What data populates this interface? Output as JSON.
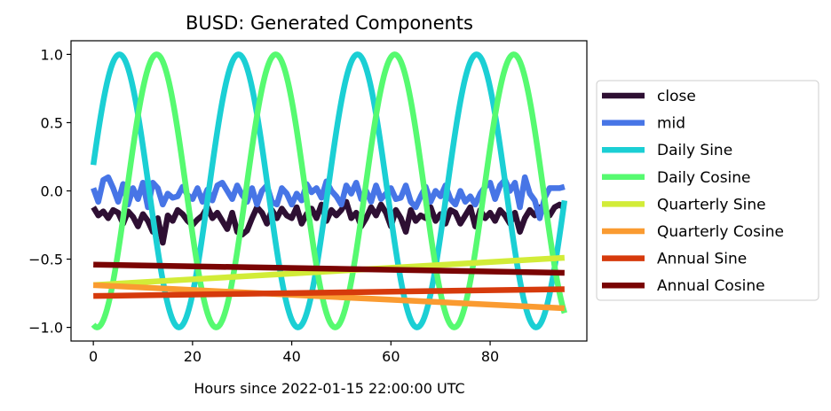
{
  "chart_data": {
    "type": "line",
    "title": "BUSD: Generated Components",
    "xlabel": "Hours since 2022-01-15 22:00:00 UTC",
    "ylabel": "",
    "xlim": [
      -4.5,
      99.5
    ],
    "ylim": [
      -1.1,
      1.1
    ],
    "xticks": [
      0,
      20,
      40,
      60,
      80
    ],
    "yticks": [
      1.0,
      0.5,
      0.0,
      -0.5,
      -1.0
    ],
    "ytick_labels": [
      "1.0",
      "0.5",
      "0.0",
      "−0.5",
      "−1.0"
    ],
    "grid": false,
    "legend_position": "center right, outside plot",
    "x_start": 0,
    "x_end": 95,
    "series": [
      {
        "name": "close",
        "color": "#2e0f33",
        "values": [
          -0.12,
          -0.18,
          -0.15,
          -0.2,
          -0.14,
          -0.16,
          -0.24,
          -0.15,
          -0.19,
          -0.26,
          -0.17,
          -0.22,
          -0.3,
          -0.2,
          -0.38,
          -0.18,
          -0.22,
          -0.14,
          -0.17,
          -0.22,
          -0.25,
          -0.21,
          -0.18,
          -0.12,
          -0.2,
          -0.16,
          -0.22,
          -0.28,
          -0.16,
          -0.3,
          -0.32,
          -0.29,
          -0.2,
          -0.12,
          -0.16,
          -0.24,
          -0.14,
          -0.2,
          -0.13,
          -0.18,
          -0.2,
          -0.12,
          -0.24,
          -0.17,
          -0.13,
          -0.2,
          -0.1,
          -0.22,
          -0.14,
          -0.18,
          -0.14,
          -0.08,
          -0.2,
          -0.16,
          -0.26,
          -0.2,
          -0.12,
          -0.18,
          -0.1,
          -0.16,
          -0.26,
          -0.14,
          -0.2,
          -0.3,
          -0.14,
          -0.22,
          -0.18,
          -0.2,
          -0.12,
          -0.22,
          -0.17,
          -0.24,
          -0.14,
          -0.16,
          -0.24,
          -0.18,
          -0.12,
          -0.26,
          -0.14,
          -0.2,
          -0.16,
          -0.22,
          -0.14,
          -0.18,
          -0.24,
          -0.16,
          -0.3,
          -0.2,
          -0.14,
          -0.18,
          -0.12,
          -0.14,
          -0.18,
          -0.12,
          -0.1,
          -0.13
        ]
      },
      {
        "name": "mid",
        "color": "#4775e6",
        "values": [
          0.02,
          -0.08,
          0.08,
          0.1,
          0.02,
          -0.08,
          0.05,
          -0.1,
          0.02,
          -0.06,
          0.06,
          -0.12,
          0.06,
          0.02,
          -0.1,
          -0.02,
          -0.05,
          -0.04,
          0.03,
          -0.03,
          -0.06,
          0.02,
          -0.08,
          0.01,
          -0.07,
          0.04,
          0.06,
          0.0,
          -0.06,
          0.04,
          -0.03,
          -0.08,
          0.02,
          -0.1,
          0.0,
          0.04,
          -0.08,
          -0.1,
          0.02,
          -0.02,
          -0.1,
          -0.02,
          -0.07,
          0.05,
          -0.01,
          0.02,
          -0.05,
          0.07,
          0.0,
          -0.04,
          -0.1,
          0.04,
          -0.02,
          0.06,
          -0.06,
          0.0,
          -0.08,
          0.04,
          -0.06,
          -0.02,
          0.02,
          -0.06,
          -0.05,
          0.04,
          -0.08,
          -0.12,
          -0.04,
          0.03,
          -0.08,
          0.0,
          -0.04,
          0.04,
          -0.06,
          -0.1,
          0.0,
          -0.08,
          -0.04,
          -0.1,
          -0.02,
          0.03,
          0.06,
          -0.06,
          0.04,
          0.08,
          0.0,
          0.06,
          -0.12,
          0.1,
          -0.02,
          -0.07,
          -0.2,
          -0.05,
          0.02,
          0.02,
          0.02,
          0.03
        ]
      },
      {
        "name": "Daily Sine",
        "color": "#1bcfd4",
        "sin": {
          "amplitude": 1,
          "period": 24,
          "phase_x0": 0.19
        }
      },
      {
        "name": "Daily Cosine",
        "color": "#56fa70",
        "cos": {
          "amplitude": 1,
          "period": 24,
          "phase_x0": -0.98
        }
      },
      {
        "name": "Quarterly Sine",
        "color": "#d2ec38",
        "linear": {
          "start": -0.69,
          "end": -0.49
        }
      },
      {
        "name": "Quarterly Cosine",
        "color": "#fa9b31",
        "linear": {
          "start": -0.69,
          "end": -0.86
        }
      },
      {
        "name": "Annual Sine",
        "color": "#d63a0c",
        "linear": {
          "start": -0.77,
          "end": -0.72
        }
      },
      {
        "name": "Annual Cosine",
        "color": "#7a0403",
        "linear": {
          "start": -0.54,
          "end": -0.6
        }
      }
    ]
  }
}
